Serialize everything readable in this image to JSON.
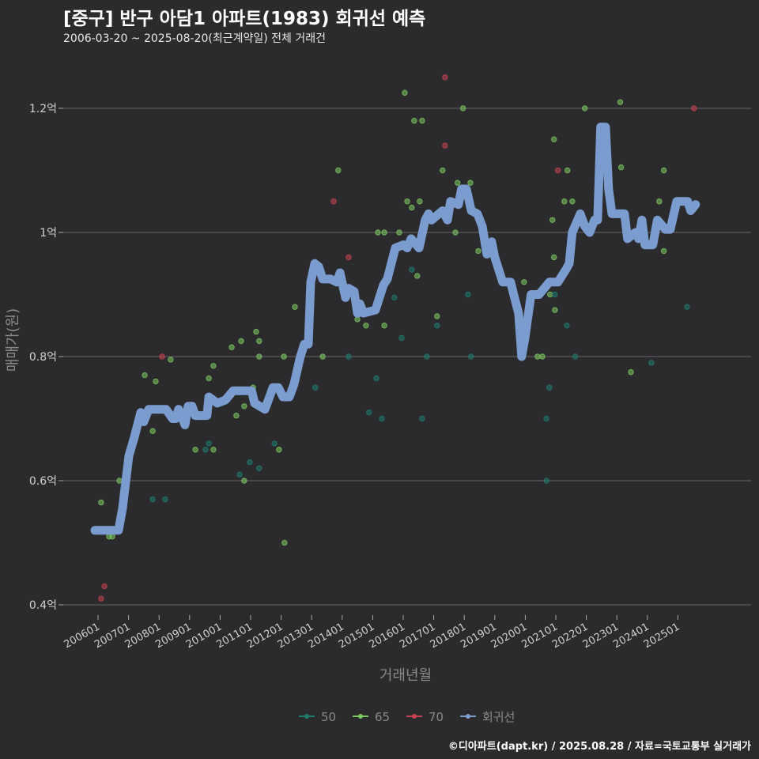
{
  "header": {
    "title": "[중구] 반구 아담1 아파트(1983) 회귀선 예측",
    "subtitle": "2006-03-20 ~ 2025-08-20(최근계약일) 전체 거래건"
  },
  "footer": "©디아파트(dapt.kr) / 2025.08.28 / 자료=국토교통부 실거래가",
  "colors": {
    "background": "#2b2b2d",
    "g50": "#1f7a70",
    "g65": "#7cc95f",
    "g70": "#c7424e",
    "line": "#7b9ccf",
    "grid": "#666666"
  },
  "chart_data": {
    "type": "scatter",
    "title": "[중구] 반구 아담1 아파트(1983) 회귀선 예측",
    "xlabel": "거래년월",
    "ylabel": "매매가(원)",
    "ylim": [
      0.38,
      1.28
    ],
    "xlim": [
      2005.0,
      2026.2
    ],
    "yticks": [
      {
        "v": 0.4,
        "label": "0.4억"
      },
      {
        "v": 0.6,
        "label": "0.6억"
      },
      {
        "v": 0.8,
        "label": "0.8억"
      },
      {
        "v": 1.0,
        "label": "1억"
      },
      {
        "v": 1.2,
        "label": "1.2억"
      }
    ],
    "xticks": [
      "200601",
      "200701",
      "200801",
      "200901",
      "201001",
      "201101",
      "201201",
      "201301",
      "201401",
      "201501",
      "201601",
      "201701",
      "201801",
      "201901",
      "202001",
      "202101",
      "202201",
      "202301",
      "202401",
      "202501"
    ],
    "legend": [
      {
        "key": "g50",
        "label": "50"
      },
      {
        "key": "g65",
        "label": "65"
      },
      {
        "key": "g70",
        "label": "70"
      },
      {
        "key": "line",
        "label": "회귀선"
      }
    ],
    "legend_position": "bottom",
    "grid": true,
    "regression_line": [
      [
        2005.9,
        0.52
      ],
      [
        2006.67,
        0.52
      ],
      [
        2006.8,
        0.555
      ],
      [
        2007.01,
        0.64
      ],
      [
        2007.19,
        0.67
      ],
      [
        2007.4,
        0.71
      ],
      [
        2007.5,
        0.695
      ],
      [
        2007.66,
        0.715
      ],
      [
        2008.23,
        0.715
      ],
      [
        2008.44,
        0.7
      ],
      [
        2008.54,
        0.7
      ],
      [
        2008.64,
        0.715
      ],
      [
        2008.85,
        0.69
      ],
      [
        2008.95,
        0.72
      ],
      [
        2009.08,
        0.72
      ],
      [
        2009.19,
        0.705
      ],
      [
        2009.57,
        0.705
      ],
      [
        2009.63,
        0.735
      ],
      [
        2009.91,
        0.725
      ],
      [
        2010.17,
        0.73
      ],
      [
        2010.43,
        0.745
      ],
      [
        2011.03,
        0.745
      ],
      [
        2011.13,
        0.725
      ],
      [
        2011.47,
        0.715
      ],
      [
        2011.73,
        0.75
      ],
      [
        2011.91,
        0.75
      ],
      [
        2012.06,
        0.735
      ],
      [
        2012.27,
        0.735
      ],
      [
        2012.42,
        0.755
      ],
      [
        2012.63,
        0.8
      ],
      [
        2012.76,
        0.82
      ],
      [
        2012.89,
        0.82
      ],
      [
        2012.97,
        0.92
      ],
      [
        2013.1,
        0.95
      ],
      [
        2013.23,
        0.945
      ],
      [
        2013.36,
        0.925
      ],
      [
        2013.62,
        0.925
      ],
      [
        2013.82,
        0.92
      ],
      [
        2013.93,
        0.935
      ],
      [
        2014.11,
        0.895
      ],
      [
        2014.21,
        0.91
      ],
      [
        2014.39,
        0.905
      ],
      [
        2014.5,
        0.87
      ],
      [
        2014.58,
        0.885
      ],
      [
        2014.7,
        0.87
      ],
      [
        2015.09,
        0.875
      ],
      [
        2015.35,
        0.915
      ],
      [
        2015.48,
        0.925
      ],
      [
        2015.74,
        0.975
      ],
      [
        2016.0,
        0.98
      ],
      [
        2016.13,
        0.975
      ],
      [
        2016.26,
        0.99
      ],
      [
        2016.52,
        0.975
      ],
      [
        2016.72,
        1.02
      ],
      [
        2016.83,
        1.03
      ],
      [
        2016.93,
        1.02
      ],
      [
        2017.29,
        1.035
      ],
      [
        2017.45,
        1.02
      ],
      [
        2017.55,
        1.05
      ],
      [
        2017.81,
        1.045
      ],
      [
        2017.91,
        1.07
      ],
      [
        2018.07,
        1.07
      ],
      [
        2018.23,
        1.035
      ],
      [
        2018.43,
        1.03
      ],
      [
        2018.59,
        1.01
      ],
      [
        2018.74,
        0.965
      ],
      [
        2018.9,
        0.985
      ],
      [
        2019.0,
        0.96
      ],
      [
        2019.26,
        0.92
      ],
      [
        2019.52,
        0.92
      ],
      [
        2019.62,
        0.9
      ],
      [
        2019.78,
        0.87
      ],
      [
        2019.88,
        0.8
      ],
      [
        2019.99,
        0.83
      ],
      [
        2020.19,
        0.9
      ],
      [
        2020.45,
        0.9
      ],
      [
        2020.79,
        0.92
      ],
      [
        2021.07,
        0.92
      ],
      [
        2021.33,
        0.94
      ],
      [
        2021.44,
        0.95
      ],
      [
        2021.54,
        1.0
      ],
      [
        2021.8,
        1.03
      ],
      [
        2021.95,
        1.01
      ],
      [
        2022.11,
        1.0
      ],
      [
        2022.27,
        1.02
      ],
      [
        2022.37,
        1.02
      ],
      [
        2022.47,
        1.17
      ],
      [
        2022.63,
        1.17
      ],
      [
        2022.73,
        1.07
      ],
      [
        2022.84,
        1.03
      ],
      [
        2023.25,
        1.03
      ],
      [
        2023.35,
        0.99
      ],
      [
        2023.61,
        1.0
      ],
      [
        2023.71,
        0.99
      ],
      [
        2023.82,
        1.02
      ],
      [
        2023.92,
        0.98
      ],
      [
        2024.18,
        0.98
      ],
      [
        2024.33,
        1.02
      ],
      [
        2024.59,
        1.005
      ],
      [
        2024.75,
        1.005
      ],
      [
        2024.96,
        1.05
      ],
      [
        2025.32,
        1.05
      ],
      [
        2025.42,
        1.035
      ],
      [
        2025.58,
        1.045
      ]
    ],
    "points": [
      [
        2006.1,
        0.565,
        "g65"
      ],
      [
        2006.21,
        0.43,
        "g70"
      ],
      [
        2006.1,
        0.41,
        "g70"
      ],
      [
        2006.36,
        0.51,
        "g65"
      ],
      [
        2006.47,
        0.51,
        "g65"
      ],
      [
        2006.7,
        0.6,
        "g65"
      ],
      [
        2007.53,
        0.77,
        "g65"
      ],
      [
        2007.79,
        0.68,
        "g65"
      ],
      [
        2007.79,
        0.57,
        "g50"
      ],
      [
        2007.89,
        0.76,
        "g65"
      ],
      [
        2008.1,
        0.8,
        "g70"
      ],
      [
        2008.2,
        0.57,
        "g50"
      ],
      [
        2008.38,
        0.795,
        "g65"
      ],
      [
        2009.19,
        0.65,
        "g65"
      ],
      [
        2009.52,
        0.65,
        "g50"
      ],
      [
        2009.63,
        0.66,
        "g50"
      ],
      [
        2009.63,
        0.765,
        "g65"
      ],
      [
        2009.78,
        0.785,
        "g65"
      ],
      [
        2009.78,
        0.65,
        "g65"
      ],
      [
        2010.38,
        0.815,
        "g65"
      ],
      [
        2010.53,
        0.705,
        "g65"
      ],
      [
        2010.64,
        0.61,
        "g50"
      ],
      [
        2010.69,
        0.825,
        "g65"
      ],
      [
        2010.79,
        0.72,
        "g65"
      ],
      [
        2010.79,
        0.6,
        "g65"
      ],
      [
        2010.97,
        0.63,
        "g50"
      ],
      [
        2011.08,
        0.75,
        "g65"
      ],
      [
        2011.18,
        0.84,
        "g65"
      ],
      [
        2011.28,
        0.825,
        "g65"
      ],
      [
        2011.28,
        0.8,
        "g65"
      ],
      [
        2011.28,
        0.62,
        "g50"
      ],
      [
        2011.78,
        0.66,
        "g50"
      ],
      [
        2011.93,
        0.65,
        "g65"
      ],
      [
        2012.09,
        0.8,
        "g65"
      ],
      [
        2012.11,
        0.5,
        "g65"
      ],
      [
        2012.45,
        0.88,
        "g65"
      ],
      [
        2013.12,
        0.75,
        "g50"
      ],
      [
        2013.36,
        0.8,
        "g65"
      ],
      [
        2013.72,
        1.05,
        "g70"
      ],
      [
        2013.87,
        1.1,
        "g65"
      ],
      [
        2014.21,
        0.96,
        "g70"
      ],
      [
        2014.21,
        0.8,
        "g50"
      ],
      [
        2014.5,
        0.86,
        "g65"
      ],
      [
        2014.78,
        0.85,
        "g65"
      ],
      [
        2014.88,
        0.71,
        "g50"
      ],
      [
        2015.12,
        0.765,
        "g50"
      ],
      [
        2015.17,
        1.0,
        "g65"
      ],
      [
        2015.3,
        0.7,
        "g50"
      ],
      [
        2015.38,
        1.0,
        "g65"
      ],
      [
        2015.38,
        0.85,
        "g65"
      ],
      [
        2015.71,
        0.895,
        "g50"
      ],
      [
        2015.87,
        1.0,
        "g65"
      ],
      [
        2015.95,
        0.83,
        "g50"
      ],
      [
        2016.05,
        1.225,
        "g65"
      ],
      [
        2016.13,
        1.05,
        "g65"
      ],
      [
        2016.28,
        1.04,
        "g65"
      ],
      [
        2016.28,
        0.94,
        "g50"
      ],
      [
        2016.36,
        1.18,
        "g65"
      ],
      [
        2016.46,
        0.93,
        "g65"
      ],
      [
        2016.54,
        1.05,
        "g65"
      ],
      [
        2016.62,
        1.18,
        "g65"
      ],
      [
        2016.62,
        0.7,
        "g50"
      ],
      [
        2016.77,
        0.8,
        "g50"
      ],
      [
        2017.11,
        0.865,
        "g65"
      ],
      [
        2017.11,
        0.85,
        "g50"
      ],
      [
        2017.29,
        1.1,
        "g65"
      ],
      [
        2017.37,
        1.14,
        "g70"
      ],
      [
        2017.37,
        1.25,
        "g70"
      ],
      [
        2017.71,
        1.0,
        "g65"
      ],
      [
        2017.78,
        1.08,
        "g65"
      ],
      [
        2017.96,
        1.2,
        "g65"
      ],
      [
        2018.12,
        0.9,
        "g50"
      ],
      [
        2018.2,
        1.08,
        "g65"
      ],
      [
        2018.22,
        0.8,
        "g50"
      ],
      [
        2018.46,
        0.97,
        "g65"
      ],
      [
        2019.96,
        0.92,
        "g65"
      ],
      [
        2020.4,
        0.8,
        "g65"
      ],
      [
        2020.56,
        0.8,
        "g65"
      ],
      [
        2020.69,
        0.7,
        "g50"
      ],
      [
        2020.69,
        0.6,
        "g50"
      ],
      [
        2020.79,
        0.75,
        "g50"
      ],
      [
        2020.81,
        0.9,
        "g65"
      ],
      [
        2020.89,
        1.02,
        "g65"
      ],
      [
        2020.94,
        1.15,
        "g65"
      ],
      [
        2020.94,
        0.96,
        "g65"
      ],
      [
        2020.97,
        0.9,
        "g50"
      ],
      [
        2020.97,
        0.875,
        "g65"
      ],
      [
        2021.07,
        1.1,
        "g70"
      ],
      [
        2021.28,
        1.05,
        "g65"
      ],
      [
        2021.36,
        0.85,
        "g50"
      ],
      [
        2021.38,
        1.1,
        "g65"
      ],
      [
        2021.54,
        1.05,
        "g65"
      ],
      [
        2021.64,
        0.8,
        "g50"
      ],
      [
        2021.95,
        1.2,
        "g65"
      ],
      [
        2023.11,
        1.21,
        "g65"
      ],
      [
        2023.14,
        1.105,
        "g65"
      ],
      [
        2023.46,
        0.775,
        "g65"
      ],
      [
        2024.13,
        0.79,
        "g50"
      ],
      [
        2024.39,
        1.05,
        "g65"
      ],
      [
        2024.54,
        0.97,
        "g65"
      ],
      [
        2024.54,
        1.1,
        "g65"
      ],
      [
        2025.3,
        0.88,
        "g50"
      ],
      [
        2025.53,
        1.2,
        "g70"
      ]
    ]
  }
}
